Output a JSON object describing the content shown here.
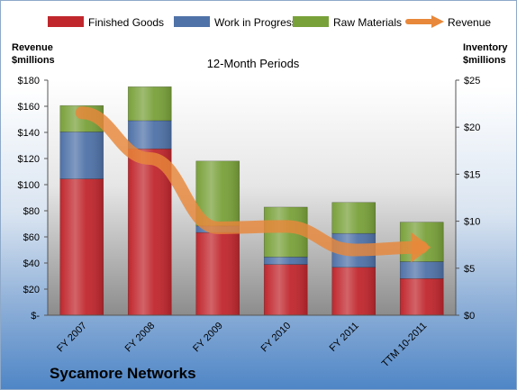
{
  "chart_data": {
    "type": "bar",
    "title": "12-Month Periods",
    "categories": [
      "FY 2007",
      "FY 2008",
      "FY 2009",
      "FY 2010",
      "FY 2011",
      "TTM 10-2011"
    ],
    "series": [
      {
        "name": "Finished Goods",
        "axis": "right",
        "color": "#c0272d",
        "values": [
          14.5,
          17.7,
          8.8,
          5.4,
          5.1,
          3.9
        ]
      },
      {
        "name": "Work in Progress",
        "axis": "right",
        "color": "#4f72a8",
        "values": [
          5.0,
          3.0,
          0.7,
          0.8,
          3.6,
          1.8
        ]
      },
      {
        "name": "Raw Materials",
        "axis": "right",
        "color": "#79a13a",
        "values": [
          2.8,
          3.6,
          6.9,
          5.3,
          3.3,
          4.2
        ]
      },
      {
        "name": "Revenue",
        "axis": "left",
        "type": "line",
        "color": "#e8883a",
        "values": [
          155,
          120,
          67,
          68,
          50,
          52
        ]
      }
    ],
    "y_left": {
      "label": "Revenue $millions",
      "ylim": [
        0,
        180
      ],
      "ticks": [
        "$-",
        "$20",
        "$40",
        "$60",
        "$80",
        "$100",
        "$120",
        "$140",
        "$160",
        "$180"
      ]
    },
    "y_right": {
      "label": "Inventory $millions",
      "ylim": [
        0,
        25
      ],
      "ticks": [
        "$0",
        "$5",
        "$10",
        "$15",
        "$20",
        "$25"
      ]
    },
    "legend": "top",
    "grid": false
  },
  "headers": {
    "left_line1": "Revenue",
    "left_line2": "$millions",
    "right_line1": "Inventory",
    "right_line2": "$millions"
  },
  "footer": {
    "company": "Sycamore Networks"
  }
}
